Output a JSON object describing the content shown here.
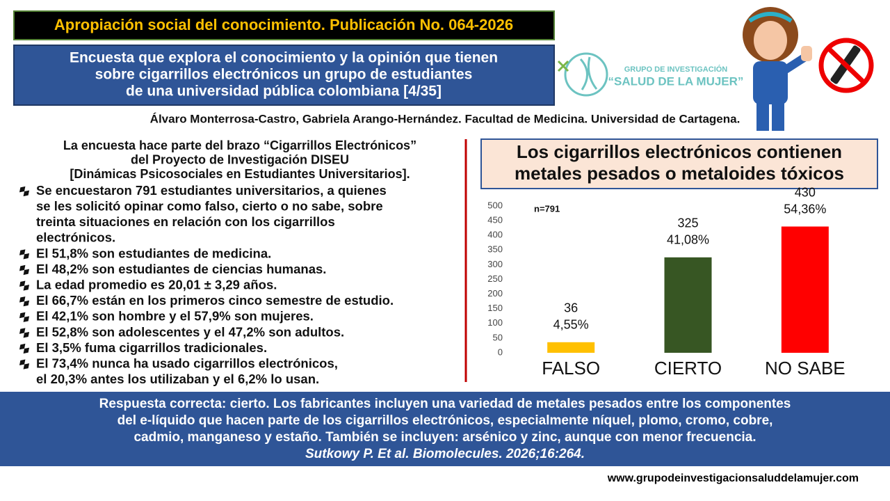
{
  "header": {
    "publication": "Apropiación social del conocimiento. Publicación No. 064-2026",
    "title_lines": [
      "Encuesta que explora el conocimiento y la opinión que tienen",
      "sobre cigarrillos electrónicos un grupo de estudiantes",
      "de una universidad pública colombiana [4/35]"
    ],
    "authors": "Álvaro Monterrosa-Castro, Gabriela Arango-Hernández. Facultad de Medicina. Universidad de Cartagena."
  },
  "logo": {
    "line1": "GRUPO DE INVESTIGACIÓN",
    "line2": "“SALUD DE LA MUJER”"
  },
  "intro_lines": [
    "La encuesta hace parte del brazo “Cigarrillos Electrónicos”",
    "del Proyecto de Investigación DISEU",
    "[Dinámicas Psicosociales en Estudiantes Universitarios]."
  ],
  "bullets": [
    [
      "Se encuestaron 791 estudiantes universitarios, a quienes",
      "se les solicitó opinar como falso, cierto o no sabe, sobre",
      "treinta situaciones en relación con los cigarrillos",
      "electrónicos."
    ],
    [
      "El 51,8% son estudiantes de medicina."
    ],
    [
      "El 48,2% son estudiantes de ciencias humanas."
    ],
    [
      "La edad promedio es 20,01 ± 3,29 años."
    ],
    [
      "El 66,7% están en los primeros cinco semestre de estudio."
    ],
    [
      "El 42,1% son hombre y el 57,9% son mujeres."
    ],
    [
      "El 52,8% son adolescentes y el 47,2% son adultos."
    ],
    [
      "El 3,5% fuma cigarrillos tradicionales."
    ],
    [
      "El 73,4% nunca ha usado cigarrillos electrónicos,",
      "el 20,3% antes los utilizaban y el 6,2% lo usan."
    ]
  ],
  "chart_data": {
    "type": "bar",
    "title_lines": [
      "Los cigarrillos electrónicos contienen",
      "metales pesados o metaloides tóxicos"
    ],
    "annotation": "n=791",
    "categories": [
      "FALSO",
      "CIERTO",
      "NO SABE"
    ],
    "values": [
      36,
      325,
      430
    ],
    "percent_labels": [
      "4,55%",
      "41,08%",
      "54,36%"
    ],
    "colors": [
      "#ffc000",
      "#375623",
      "#ff0000"
    ],
    "ylim": [
      0,
      500
    ],
    "yticks": [
      0,
      50,
      100,
      150,
      200,
      250,
      300,
      350,
      400,
      450,
      500
    ],
    "grid": false
  },
  "footer": {
    "lines": [
      "Respuesta correcta: cierto. Los fabricantes incluyen una variedad de metales pesados entre los componentes",
      "del e-líquido que hacen parte de los cigarrillos electrónicos, especialmente níquel, plomo, cromo, cobre,",
      "cadmio, manganeso y estaño. También se incluyen: arsénico y zinc, aunque con menor frecuencia."
    ],
    "citation": "Sutkowy P. Et al. Biomolecules. 2026;16:264.",
    "website": "www.grupodeinvestigacionsaluddelamujer.com"
  }
}
